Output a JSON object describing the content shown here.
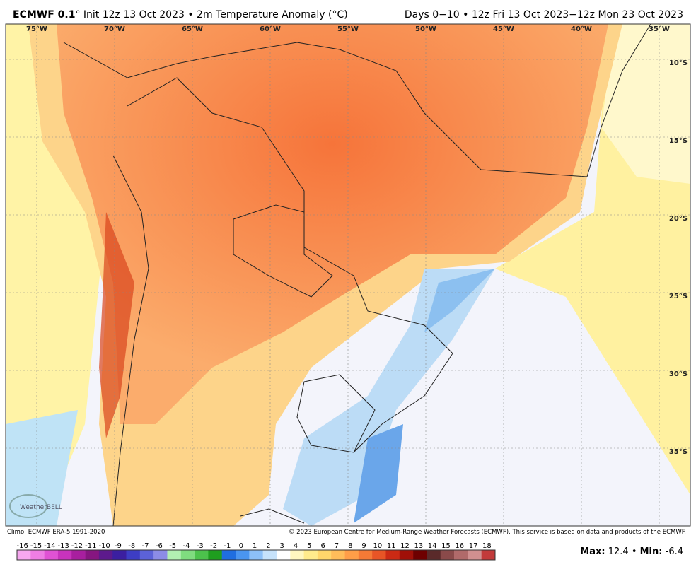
{
  "header": {
    "title_bold": "ECMWF 0.1",
    "title_rest": "° Init 12z 13 Oct 2023 • 2m Temperature Anomaly (°C)",
    "valid": "Days 0−10 • 12z Fri 13 Oct 2023−12z Mon 23 Oct 2023"
  },
  "map": {
    "lon_labels": [
      "75°W",
      "70°W",
      "65°W",
      "60°W",
      "55°W",
      "50°W",
      "45°W",
      "40°W",
      "35°W"
    ],
    "lat_labels": [
      "10°S",
      "15°S",
      "20°S",
      "25°S",
      "30°S",
      "35°S"
    ],
    "logo": "WeatherBELL"
  },
  "credits": {
    "climo": "Climo: ECMWF ERA-5 1991-2020",
    "copyright": "© 2023 European Centre for Medium-Range Weather Forecasts (ECMWF). This service is based on data and products of the ECMWF."
  },
  "colorbar": {
    "ticks": [
      -16,
      -15,
      -14,
      -13,
      -12,
      -11,
      -10,
      -9,
      -8,
      -7,
      -6,
      -5,
      -4,
      -3,
      -2,
      -1,
      0,
      1,
      2,
      3,
      4,
      5,
      6,
      7,
      8,
      9,
      10,
      11,
      12,
      13,
      14,
      15,
      16,
      17,
      18
    ],
    "colors": [
      "#f7a8f0",
      "#ee7ee4",
      "#e052d4",
      "#c833bd",
      "#a81f9f",
      "#861680",
      "#5d1a8c",
      "#3b1fa0",
      "#3d3dc4",
      "#5c62d8",
      "#8c8ce6",
      "#b2f0b2",
      "#7fdc7f",
      "#4cc24c",
      "#1f9e1f",
      "#1f6ee0",
      "#4a95f0",
      "#8cc0f8",
      "#c6e2fb",
      "#ffffff",
      "#fff7c0",
      "#ffeb8c",
      "#ffd66b",
      "#ffbd5a",
      "#ff9e48",
      "#f57a36",
      "#e85526",
      "#cc2a14",
      "#a01008",
      "#6e0000",
      "#5a2a2a",
      "#8a4a4a",
      "#b06a6a",
      "#d09090",
      "#c23a3a"
    ]
  },
  "stats": {
    "max_label": "Max:",
    "max": 12.4,
    "separator": "•",
    "min_label": "Min:",
    "min": -6.4
  }
}
